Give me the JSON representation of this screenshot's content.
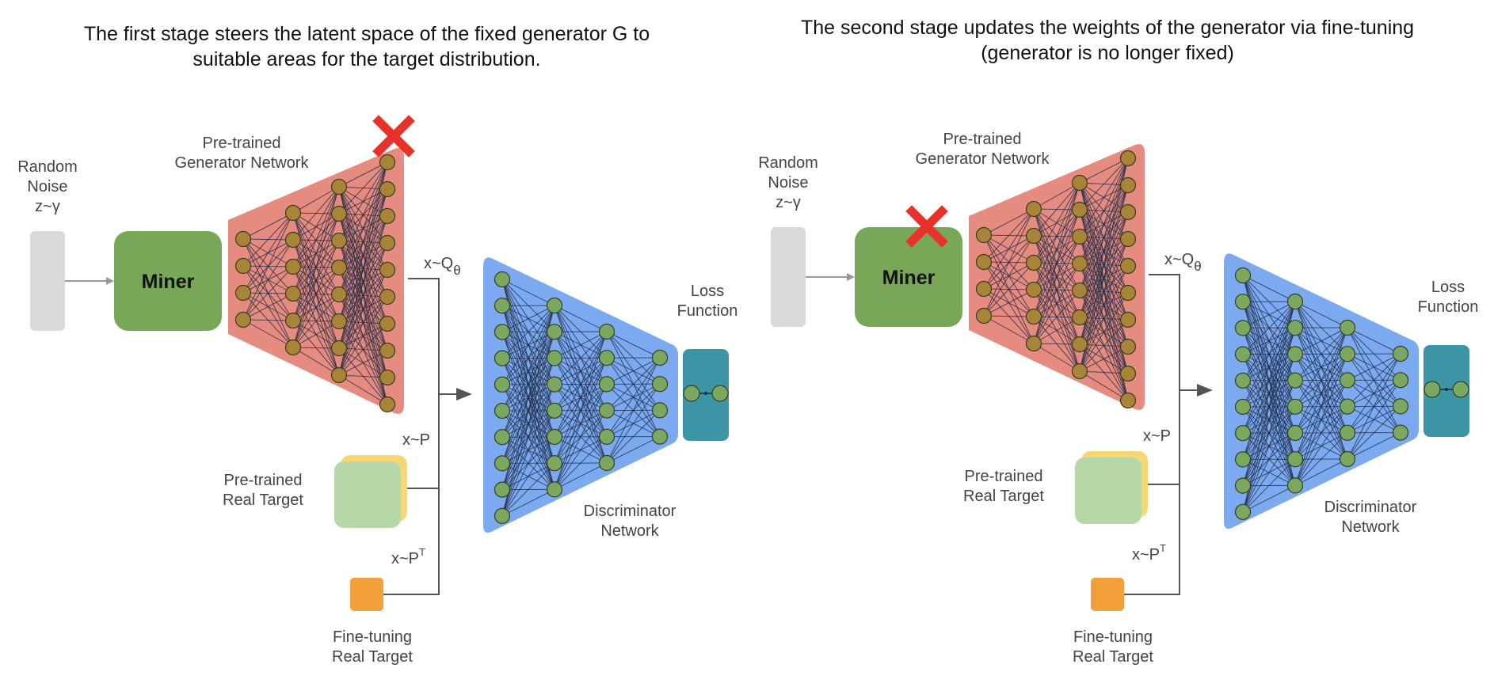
{
  "colors": {
    "generator": "#e58b80",
    "generator_node": "#a88438",
    "discriminator": "#7baaf0",
    "discriminator_node": "#7aa860",
    "miner": "#78a758",
    "noise": "#d9d9d9",
    "loss": "#3b95a5",
    "loss_node": "#7aa860",
    "pretrained_target": "#b6d7a8",
    "pretrained_target_back": "#f7d774",
    "finetune_target": "#f1a03a",
    "frozen_mark": "#e8312a",
    "flow_line": "#555555"
  },
  "icons": {
    "frozen": "red-x-icon",
    "arrow": "arrow-head-icon"
  },
  "panels": [
    {
      "heading_line1": "The first stage steers the latent space of the fixed generator G to",
      "heading_line2": "suitable areas for the target distribution.",
      "noise_label_line1": "Random",
      "noise_label_line2": "Noise",
      "noise_label_line3": "z~γ",
      "miner_label": "Miner",
      "generator_label_line1": "Pre-trained",
      "generator_label_line2": "Generator Network",
      "output_label": "x~Q",
      "output_subscript": "θ",
      "real_label": "x~P",
      "real_target_label_line1": "Pre-trained",
      "real_target_label_line2": "Real Target",
      "finetune_label": "x~P",
      "finetune_superscript": "T",
      "finetune_target_label_line1": "Fine-tuning",
      "finetune_target_label_line2": "Real Target",
      "discriminator_label_line1": "Discriminator",
      "discriminator_label_line2": "Network",
      "loss_label_line1": "Loss",
      "loss_label_line2": "Function",
      "frozen_component": "generator"
    },
    {
      "heading_line1": "The second stage updates the weights of the generator via fine-tuning",
      "heading_line2": "(generator is no longer fixed)",
      "noise_label_line1": "Random",
      "noise_label_line2": "Noise",
      "noise_label_line3": "z~γ",
      "miner_label": "Miner",
      "generator_label_line1": "Pre-trained",
      "generator_label_line2": "Generator Network",
      "output_label": "x~Q",
      "output_subscript": "θ",
      "real_label": "x~P",
      "real_target_label_line1": "Pre-trained",
      "real_target_label_line2": "Real Target",
      "finetune_label": "x~P",
      "finetune_superscript": "T",
      "finetune_target_label_line1": "Fine-tuning",
      "finetune_target_label_line2": "Real Target",
      "discriminator_label_line1": "Discriminator",
      "discriminator_label_line2": "Network",
      "loss_label_line1": "Loss",
      "loss_label_line2": "Function",
      "frozen_component": "miner"
    }
  ]
}
